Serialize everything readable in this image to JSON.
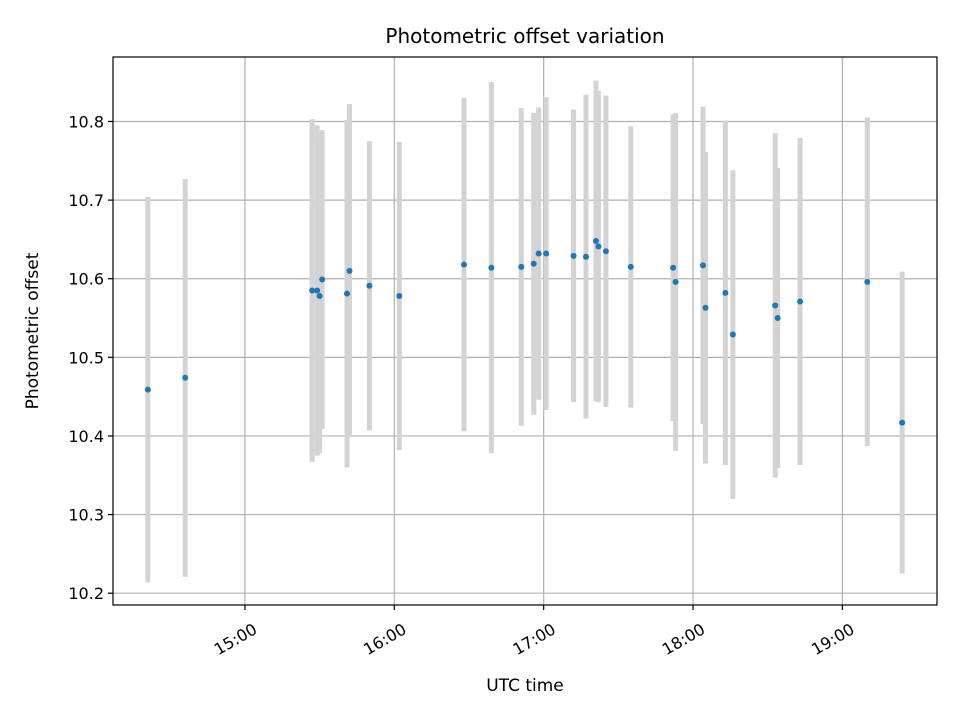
{
  "chart_data": {
    "type": "scatter",
    "title": "Photometric offset variation",
    "xlabel": "UTC time",
    "ylabel": "Photometric offset",
    "x_ticks": [
      "15:00",
      "16:00",
      "17:00",
      "18:00",
      "19:00"
    ],
    "y_ticks": [
      "10.2",
      "10.3",
      "10.4",
      "10.5",
      "10.6",
      "10.7",
      "10.8"
    ],
    "xlim": [
      "14:07",
      "19:38"
    ],
    "ylim": [
      10.185,
      10.882
    ],
    "grid": true,
    "errorbar_color": "#d3d3d3",
    "marker_color": "#1f77b4",
    "points": [
      {
        "x": "14:21",
        "y": 10.459,
        "err": 0.245
      },
      {
        "x": "14:36",
        "y": 10.474,
        "err": 0.253
      },
      {
        "x": "15:27",
        "y": 10.585,
        "err": 0.218
      },
      {
        "x": "15:29",
        "y": 10.585,
        "err": 0.21
      },
      {
        "x": "15:30",
        "y": 10.578,
        "err": 0.2
      },
      {
        "x": "15:31",
        "y": 10.599,
        "err": 0.19
      },
      {
        "x": "15:41",
        "y": 10.581,
        "err": 0.221
      },
      {
        "x": "15:42",
        "y": 10.61,
        "err": 0.212
      },
      {
        "x": "15:50",
        "y": 10.591,
        "err": 0.184
      },
      {
        "x": "16:02",
        "y": 10.578,
        "err": 0.196
      },
      {
        "x": "16:28",
        "y": 10.618,
        "err": 0.212
      },
      {
        "x": "16:39",
        "y": 10.614,
        "err": 0.236
      },
      {
        "x": "16:51",
        "y": 10.615,
        "err": 0.202
      },
      {
        "x": "16:56",
        "y": 10.619,
        "err": 0.192
      },
      {
        "x": "16:58",
        "y": 10.632,
        "err": 0.186
      },
      {
        "x": "17:01",
        "y": 10.632,
        "err": 0.199
      },
      {
        "x": "17:12",
        "y": 10.629,
        "err": 0.186
      },
      {
        "x": "17:17",
        "y": 10.628,
        "err": 0.206
      },
      {
        "x": "17:21",
        "y": 10.648,
        "err": 0.204
      },
      {
        "x": "17:22",
        "y": 10.641,
        "err": 0.198
      },
      {
        "x": "17:25",
        "y": 10.635,
        "err": 0.198
      },
      {
        "x": "17:35",
        "y": 10.615,
        "err": 0.179
      },
      {
        "x": "17:52",
        "y": 10.614,
        "err": 0.195
      },
      {
        "x": "17:53",
        "y": 10.596,
        "err": 0.215
      },
      {
        "x": "18:04",
        "y": 10.617,
        "err": 0.202
      },
      {
        "x": "18:05",
        "y": 10.563,
        "err": 0.198
      },
      {
        "x": "18:13",
        "y": 10.582,
        "err": 0.219
      },
      {
        "x": "18:16",
        "y": 10.529,
        "err": 0.209
      },
      {
        "x": "18:33",
        "y": 10.566,
        "err": 0.219
      },
      {
        "x": "18:34",
        "y": 10.55,
        "err": 0.191
      },
      {
        "x": "18:43",
        "y": 10.571,
        "err": 0.208
      },
      {
        "x": "19:10",
        "y": 10.596,
        "err": 0.209
      },
      {
        "x": "19:24",
        "y": 10.417,
        "err": 0.192
      }
    ]
  }
}
